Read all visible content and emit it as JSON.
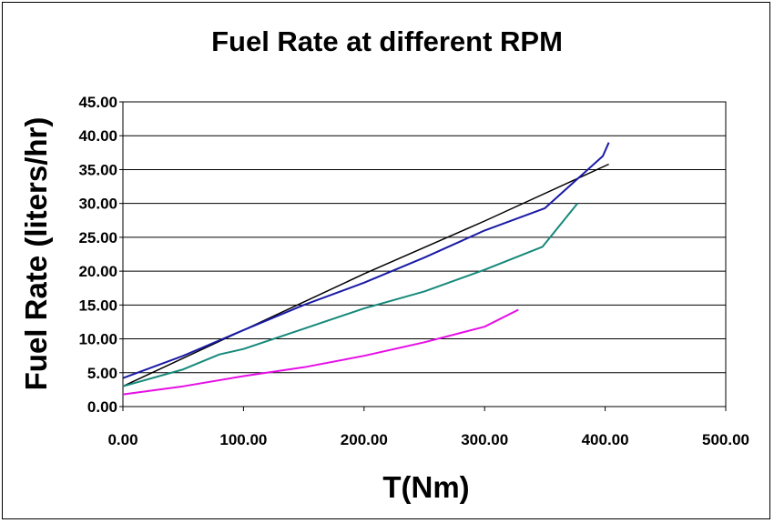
{
  "chart_data": {
    "type": "line",
    "title": "Fuel Rate at different RPM",
    "xlabel": "T(Nm)",
    "ylabel": "Fuel Rate (liters/hr)",
    "xlim": [
      0,
      500
    ],
    "ylim": [
      0,
      45
    ],
    "x_ticks": [
      "0.00",
      "100.00",
      "200.00",
      "300.00",
      "400.00",
      "500.00"
    ],
    "y_ticks": [
      "0.00",
      "5.00",
      "10.00",
      "15.00",
      "20.00",
      "25.00",
      "30.00",
      "35.00",
      "40.00",
      "45.00"
    ],
    "grid": "horizontal",
    "legend": "none",
    "series": [
      {
        "color": "#000000",
        "points": [
          [
            0,
            3.0
          ],
          [
            100,
            11.3
          ],
          [
            200,
            19.6
          ],
          [
            300,
            27.4
          ],
          [
            403,
            35.8
          ]
        ]
      },
      {
        "color": "#1a1aa6",
        "points": [
          [
            0,
            4.2
          ],
          [
            50,
            7.5
          ],
          [
            100,
            11.3
          ],
          [
            150,
            15.0
          ],
          [
            200,
            18.3
          ],
          [
            250,
            22.0
          ],
          [
            300,
            26.0
          ],
          [
            350,
            29.3
          ],
          [
            398,
            37.0
          ],
          [
            403,
            39.0
          ]
        ]
      },
      {
        "color": "#16897a",
        "points": [
          [
            0,
            3.0
          ],
          [
            50,
            5.5
          ],
          [
            80,
            7.7
          ],
          [
            100,
            8.5
          ],
          [
            150,
            11.5
          ],
          [
            200,
            14.5
          ],
          [
            250,
            17.0
          ],
          [
            300,
            20.2
          ],
          [
            348,
            23.6
          ],
          [
            377,
            30.0
          ]
        ]
      },
      {
        "color": "#e60ee6",
        "points": [
          [
            0,
            1.8
          ],
          [
            50,
            3.0
          ],
          [
            100,
            4.5
          ],
          [
            150,
            5.8
          ],
          [
            200,
            7.5
          ],
          [
            250,
            9.5
          ],
          [
            300,
            11.8
          ],
          [
            328,
            14.3
          ]
        ]
      }
    ]
  }
}
